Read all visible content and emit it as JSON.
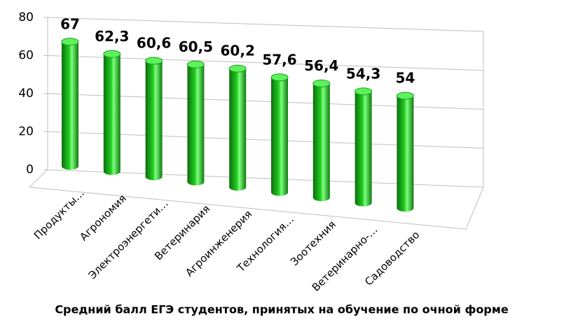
{
  "chart_data": {
    "type": "bar",
    "title": "Средний балл ЕГЭ студентов, принятых на обучение по очной форме",
    "categories": [
      "Продукты…",
      "Агрономия",
      "Электроэнергети…",
      "Ветеринария",
      "Агроинженерия",
      "Технология…",
      "Зоотехния",
      "Ветеринарно-…",
      "Садоводство"
    ],
    "values": [
      67,
      62.3,
      60.6,
      60.5,
      60.2,
      57.6,
      56.4,
      54.3,
      54
    ],
    "value_labels": [
      "67",
      "62,3",
      "60,6",
      "60,5",
      "60,2",
      "57,6",
      "56,4",
      "54,3",
      "54"
    ],
    "color": "#22cc22",
    "ylim": [
      0,
      80
    ],
    "yticks": [
      0,
      20,
      40,
      60,
      80
    ],
    "grid": true
  }
}
